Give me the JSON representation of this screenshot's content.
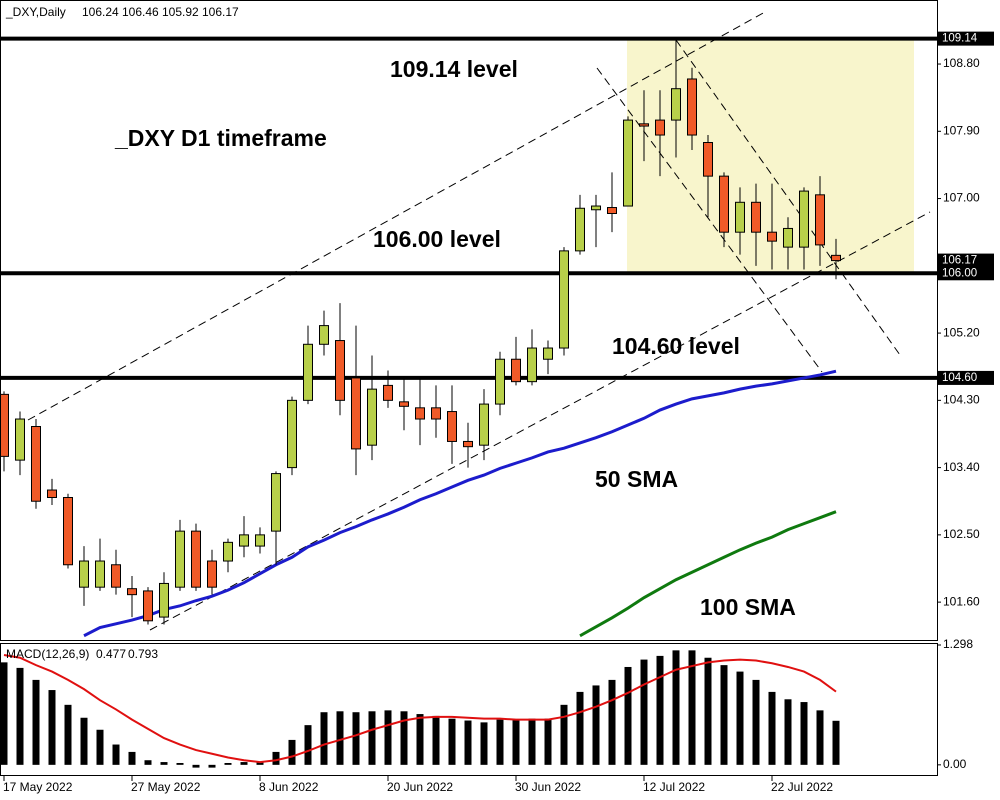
{
  "chart_data": {
    "type": "candlestick",
    "symbol": "_DXY,Daily",
    "title": "_DXY D1 timeframe",
    "categories": [
      "17 May 2022",
      null,
      null,
      null,
      null,
      null,
      null,
      null,
      "27 May 2022",
      null,
      null,
      null,
      null,
      null,
      null,
      null,
      "8 Jun 2022",
      null,
      null,
      null,
      null,
      null,
      null,
      null,
      "20 Jun 2022",
      null,
      null,
      null,
      null,
      null,
      null,
      null,
      "30 Jun 2022",
      null,
      null,
      null,
      null,
      null,
      null,
      null,
      "12 Jul 2022",
      null,
      null,
      null,
      null,
      null,
      null,
      null,
      "22 Jul 2022",
      null,
      null,
      null,
      null
    ],
    "ohlc": [
      [
        104.38,
        104.42,
        103.35,
        103.55
      ],
      [
        103.5,
        104.15,
        103.3,
        104.05
      ],
      [
        103.95,
        104.05,
        102.85,
        102.95
      ],
      [
        103.1,
        103.25,
        102.9,
        103.0
      ],
      [
        103.0,
        103.05,
        102.05,
        102.1
      ],
      [
        101.8,
        102.35,
        101.55,
        102.15
      ],
      [
        101.8,
        102.45,
        101.75,
        102.15
      ],
      [
        102.1,
        102.3,
        101.7,
        101.8
      ],
      [
        101.78,
        101.95,
        101.4,
        101.7
      ],
      [
        101.75,
        101.8,
        101.3,
        101.35
      ],
      [
        101.4,
        102.0,
        101.3,
        101.85
      ],
      [
        101.8,
        102.7,
        101.75,
        102.55
      ],
      [
        102.55,
        102.65,
        101.75,
        101.8
      ],
      [
        102.15,
        102.3,
        101.7,
        101.8
      ],
      [
        102.15,
        102.45,
        102.0,
        102.4
      ],
      [
        102.35,
        102.75,
        102.2,
        102.5
      ],
      [
        102.35,
        102.6,
        102.25,
        102.5
      ],
      [
        102.55,
        103.35,
        102.1,
        103.32
      ],
      [
        103.4,
        104.35,
        103.3,
        104.3
      ],
      [
        104.3,
        105.3,
        104.25,
        105.05
      ],
      [
        105.05,
        105.5,
        104.9,
        105.3
      ],
      [
        105.1,
        105.6,
        104.1,
        104.3
      ],
      [
        104.6,
        105.3,
        103.3,
        103.65
      ],
      [
        103.7,
        104.9,
        103.5,
        104.45
      ],
      [
        104.5,
        104.7,
        104.2,
        104.3
      ],
      [
        104.28,
        104.6,
        103.9,
        104.22
      ],
      [
        104.2,
        104.6,
        103.7,
        104.05
      ],
      [
        104.2,
        104.5,
        103.8,
        104.05
      ],
      [
        104.15,
        104.5,
        103.45,
        103.75
      ],
      [
        103.75,
        104.0,
        103.4,
        103.68
      ],
      [
        103.7,
        104.45,
        103.5,
        104.25
      ],
      [
        104.25,
        104.95,
        104.1,
        104.85
      ],
      [
        104.85,
        105.15,
        104.5,
        104.55
      ],
      [
        104.55,
        105.25,
        104.5,
        105.0
      ],
      [
        104.85,
        105.1,
        104.65,
        105.0
      ],
      [
        105.0,
        106.35,
        104.9,
        106.3
      ],
      [
        106.3,
        107.05,
        106.25,
        106.87
      ],
      [
        106.85,
        107.05,
        106.35,
        106.9
      ],
      [
        106.88,
        107.35,
        106.55,
        106.8
      ],
      [
        106.9,
        108.1,
        106.9,
        108.05
      ],
      [
        108.0,
        108.45,
        107.5,
        107.97
      ],
      [
        108.05,
        108.45,
        107.3,
        107.85
      ],
      [
        108.05,
        109.14,
        107.55,
        108.47
      ],
      [
        108.6,
        108.75,
        107.65,
        107.85
      ],
      [
        107.75,
        107.85,
        106.75,
        107.3
      ],
      [
        107.3,
        107.35,
        106.35,
        106.55
      ],
      [
        106.55,
        107.15,
        106.25,
        106.95
      ],
      [
        106.95,
        107.2,
        106.1,
        106.55
      ],
      [
        106.55,
        107.2,
        106.05,
        106.43
      ],
      [
        106.35,
        106.75,
        106.05,
        106.6
      ],
      [
        106.35,
        107.15,
        106.05,
        107.1
      ],
      [
        107.05,
        107.3,
        106.1,
        106.38
      ],
      [
        106.24,
        106.46,
        105.92,
        106.17
      ]
    ],
    "up_color": "#b8d04a",
    "down_color": "#f05a28",
    "series": [
      {
        "name": "50 SMA",
        "color": "#1c1ccc",
        "values": [
          null,
          null,
          null,
          null,
          null,
          101.15,
          101.26,
          101.31,
          101.36,
          101.42,
          101.5,
          101.55,
          101.62,
          101.68,
          101.76,
          101.86,
          101.98,
          102.1,
          102.2,
          102.34,
          102.43,
          102.53,
          102.61,
          102.7,
          102.78,
          102.87,
          102.97,
          103.05,
          103.14,
          103.23,
          103.3,
          103.39,
          103.46,
          103.53,
          103.61,
          103.66,
          103.73,
          103.8,
          103.88,
          103.97,
          104.06,
          104.17,
          104.25,
          104.32,
          104.36,
          104.4,
          104.45,
          104.49,
          104.52,
          104.56,
          104.6,
          104.64,
          104.69
        ]
      },
      {
        "name": "100 SMA",
        "color": "#0f7a0f",
        "values": [
          null,
          null,
          null,
          null,
          null,
          null,
          null,
          null,
          null,
          null,
          null,
          null,
          null,
          null,
          null,
          null,
          null,
          null,
          null,
          null,
          null,
          null,
          null,
          null,
          null,
          null,
          null,
          null,
          null,
          null,
          null,
          null,
          null,
          null,
          null,
          null,
          101.15,
          101.27,
          101.39,
          101.52,
          101.66,
          101.78,
          101.9,
          102.0,
          102.1,
          102.2,
          102.3,
          102.39,
          102.47,
          102.57,
          102.65,
          102.73,
          102.81
        ]
      }
    ],
    "levels": [
      {
        "value": 109.14,
        "label": "109.14",
        "annotation": "109.14 level"
      },
      {
        "value": 106.0,
        "label": "106.00",
        "annotation": "106.00 level"
      },
      {
        "value": 104.6,
        "label": "104.60",
        "annotation": "104.60 level"
      }
    ],
    "highlight_color": "#f8f5cc",
    "ylim": [
      101.12,
      109.63
    ],
    "yticks": [
      {
        "value": 101.6,
        "label": "101.60"
      },
      {
        "value": 102.5,
        "label": "102.50"
      },
      {
        "value": 103.4,
        "label": "103.40"
      },
      {
        "value": 104.3,
        "label": "104.30"
      },
      {
        "value": 105.2,
        "label": "105.20"
      },
      {
        "value": 107.0,
        "label": "107.00"
      },
      {
        "value": 107.9,
        "label": "107.90"
      },
      {
        "value": 108.8,
        "label": "108.80"
      }
    ],
    "macd": {
      "label": "MACD(12,26,9)",
      "histogram": [
        1.11,
        1.05,
        0.92,
        0.81,
        0.65,
        0.51,
        0.38,
        0.22,
        0.14,
        0.05,
        0.03,
        0.02,
        -0.03,
        -0.03,
        0.02,
        0.03,
        0.03,
        0.14,
        0.27,
        0.43,
        0.57,
        0.58,
        0.57,
        0.58,
        0.59,
        0.58,
        0.55,
        0.53,
        0.5,
        0.48,
        0.46,
        0.49,
        0.49,
        0.5,
        0.5,
        0.65,
        0.79,
        0.86,
        0.92,
        1.06,
        1.14,
        1.18,
        1.24,
        1.24,
        1.16,
        1.08,
        1.01,
        0.92,
        0.79,
        0.71,
        0.68,
        0.59,
        0.477
      ],
      "signal": [
        1.19,
        1.16,
        1.08,
        1.01,
        0.92,
        0.82,
        0.7,
        0.6,
        0.49,
        0.39,
        0.29,
        0.22,
        0.16,
        0.12,
        0.08,
        0.05,
        0.03,
        0.05,
        0.09,
        0.15,
        0.22,
        0.27,
        0.32,
        0.38,
        0.43,
        0.48,
        0.51,
        0.52,
        0.52,
        0.51,
        0.5,
        0.5,
        0.49,
        0.49,
        0.49,
        0.52,
        0.57,
        0.63,
        0.7,
        0.78,
        0.87,
        0.95,
        1.03,
        1.07,
        1.11,
        1.13,
        1.14,
        1.13,
        1.1,
        1.06,
        1.01,
        0.92,
        0.793
      ],
      "hist_color": "#000000",
      "signal_color": "#e01010",
      "ylim": [
        -0.11,
        1.298
      ],
      "yticks": [
        1.298,
        {
          "value": 0,
          "label": "0.00"
        }
      ]
    }
  }
}
